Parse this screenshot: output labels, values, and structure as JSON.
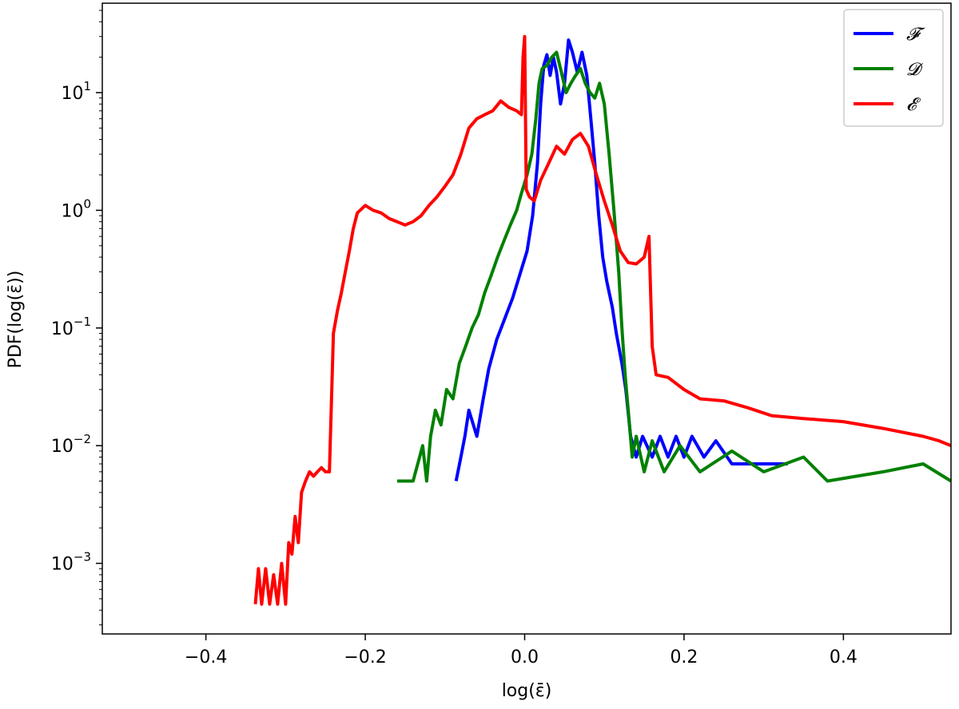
{
  "chart_data": {
    "type": "line",
    "title": "",
    "xlabel": "log(ε̄)",
    "ylabel": "PDF(log(ε̄))",
    "xlim": [
      -0.53,
      0.535
    ],
    "yscale": "log",
    "ylim_log10": [
      -3.6,
      1.76
    ],
    "x_ticks": [
      -0.4,
      -0.2,
      0.0,
      0.2,
      0.4
    ],
    "x_tick_labels": [
      "−0.4",
      "−0.2",
      "0.0",
      "0.2",
      "0.4"
    ],
    "y_ticks_log10": [
      1,
      0,
      -1,
      -2,
      -3
    ],
    "y_tick_labels": [
      {
        "base": "10",
        "exp": "1"
      },
      {
        "base": "10",
        "exp": "0"
      },
      {
        "base": "10",
        "exp": "−1"
      },
      {
        "base": "10",
        "exp": "−2"
      },
      {
        "base": "10",
        "exp": "−3"
      }
    ],
    "grid": false,
    "legend_position": "top-right",
    "series": [
      {
        "name": "𝓕",
        "color": "#0000ff",
        "points": [
          [
            -0.086,
            0.005
          ],
          [
            -0.08,
            0.008
          ],
          [
            -0.075,
            0.012
          ],
          [
            -0.07,
            0.02
          ],
          [
            -0.06,
            0.012
          ],
          [
            -0.052,
            0.025
          ],
          [
            -0.045,
            0.045
          ],
          [
            -0.035,
            0.08
          ],
          [
            -0.025,
            0.12
          ],
          [
            -0.015,
            0.18
          ],
          [
            -0.005,
            0.3
          ],
          [
            0.003,
            0.45
          ],
          [
            0.01,
            0.9
          ],
          [
            0.016,
            2.5
          ],
          [
            0.02,
            8.0
          ],
          [
            0.024,
            17.0
          ],
          [
            0.028,
            21.0
          ],
          [
            0.032,
            14.0
          ],
          [
            0.036,
            20.0
          ],
          [
            0.04,
            15.0
          ],
          [
            0.045,
            8.0
          ],
          [
            0.05,
            12.0
          ],
          [
            0.055,
            28.0
          ],
          [
            0.06,
            22.0
          ],
          [
            0.066,
            15.0
          ],
          [
            0.072,
            22.0
          ],
          [
            0.078,
            14.0
          ],
          [
            0.083,
            6.0
          ],
          [
            0.088,
            2.5
          ],
          [
            0.093,
            0.9
          ],
          [
            0.098,
            0.4
          ],
          [
            0.103,
            0.25
          ],
          [
            0.11,
            0.15
          ],
          [
            0.115,
            0.09
          ],
          [
            0.122,
            0.05
          ],
          [
            0.127,
            0.03
          ],
          [
            0.133,
            0.012
          ],
          [
            0.14,
            0.008
          ],
          [
            0.148,
            0.012
          ],
          [
            0.16,
            0.008
          ],
          [
            0.17,
            0.012
          ],
          [
            0.18,
            0.008
          ],
          [
            0.19,
            0.012
          ],
          [
            0.2,
            0.008
          ],
          [
            0.21,
            0.012
          ],
          [
            0.225,
            0.008
          ],
          [
            0.24,
            0.011
          ],
          [
            0.26,
            0.007
          ],
          [
            0.29,
            0.007
          ],
          [
            0.33,
            0.007
          ]
        ]
      },
      {
        "name": "𝓓",
        "color": "#008000",
        "points": [
          [
            -0.16,
            0.005
          ],
          [
            -0.14,
            0.005
          ],
          [
            -0.128,
            0.01
          ],
          [
            -0.123,
            0.005
          ],
          [
            -0.118,
            0.012
          ],
          [
            -0.112,
            0.02
          ],
          [
            -0.105,
            0.015
          ],
          [
            -0.098,
            0.03
          ],
          [
            -0.09,
            0.025
          ],
          [
            -0.082,
            0.05
          ],
          [
            -0.074,
            0.07
          ],
          [
            -0.066,
            0.1
          ],
          [
            -0.058,
            0.13
          ],
          [
            -0.05,
            0.2
          ],
          [
            -0.042,
            0.28
          ],
          [
            -0.034,
            0.4
          ],
          [
            -0.026,
            0.55
          ],
          [
            -0.018,
            0.75
          ],
          [
            -0.01,
            1.0
          ],
          [
            -0.004,
            1.4
          ],
          [
            0.003,
            2.0
          ],
          [
            0.009,
            3.0
          ],
          [
            0.014,
            6.0
          ],
          [
            0.018,
            12.0
          ],
          [
            0.022,
            16.0
          ],
          [
            0.028,
            17.0
          ],
          [
            0.034,
            20.0
          ],
          [
            0.04,
            22.0
          ],
          [
            0.046,
            15.0
          ],
          [
            0.052,
            10.0
          ],
          [
            0.058,
            12.0
          ],
          [
            0.064,
            14.0
          ],
          [
            0.07,
            16.0
          ],
          [
            0.076,
            12.0
          ],
          [
            0.082,
            10.0
          ],
          [
            0.088,
            9.0
          ],
          [
            0.094,
            12.0
          ],
          [
            0.1,
            8.0
          ],
          [
            0.106,
            3.0
          ],
          [
            0.112,
            1.0
          ],
          [
            0.118,
            0.3
          ],
          [
            0.122,
            0.1
          ],
          [
            0.126,
            0.04
          ],
          [
            0.13,
            0.02
          ],
          [
            0.135,
            0.008
          ],
          [
            0.14,
            0.012
          ],
          [
            0.15,
            0.006
          ],
          [
            0.16,
            0.011
          ],
          [
            0.175,
            0.006
          ],
          [
            0.195,
            0.01
          ],
          [
            0.22,
            0.006
          ],
          [
            0.26,
            0.009
          ],
          [
            0.3,
            0.006
          ],
          [
            0.35,
            0.008
          ],
          [
            0.38,
            0.005
          ],
          [
            0.45,
            0.006
          ],
          [
            0.5,
            0.007
          ],
          [
            0.535,
            0.005
          ]
        ]
      },
      {
        "name": "𝓔",
        "color": "#ff0000",
        "points": [
          [
            -0.338,
            0.00045
          ],
          [
            -0.334,
            0.0009
          ],
          [
            -0.33,
            0.00045
          ],
          [
            -0.325,
            0.0009
          ],
          [
            -0.32,
            0.00045
          ],
          [
            -0.315,
            0.0008
          ],
          [
            -0.31,
            0.00045
          ],
          [
            -0.305,
            0.001
          ],
          [
            -0.3,
            0.00045
          ],
          [
            -0.296,
            0.0015
          ],
          [
            -0.292,
            0.0012
          ],
          [
            -0.288,
            0.0025
          ],
          [
            -0.284,
            0.0015
          ],
          [
            -0.28,
            0.004
          ],
          [
            -0.275,
            0.005
          ],
          [
            -0.27,
            0.006
          ],
          [
            -0.265,
            0.0055
          ],
          [
            -0.26,
            0.006
          ],
          [
            -0.255,
            0.0065
          ],
          [
            -0.25,
            0.006
          ],
          [
            -0.245,
            0.006
          ],
          [
            -0.24,
            0.09
          ],
          [
            -0.235,
            0.14
          ],
          [
            -0.23,
            0.2
          ],
          [
            -0.225,
            0.3
          ],
          [
            -0.22,
            0.45
          ],
          [
            -0.215,
            0.7
          ],
          [
            -0.21,
            0.95
          ],
          [
            -0.2,
            1.1
          ],
          [
            -0.19,
            1.0
          ],
          [
            -0.18,
            0.95
          ],
          [
            -0.17,
            0.85
          ],
          [
            -0.16,
            0.8
          ],
          [
            -0.15,
            0.75
          ],
          [
            -0.14,
            0.8
          ],
          [
            -0.13,
            0.9
          ],
          [
            -0.12,
            1.1
          ],
          [
            -0.11,
            1.3
          ],
          [
            -0.1,
            1.6
          ],
          [
            -0.09,
            2.0
          ],
          [
            -0.08,
            3.0
          ],
          [
            -0.07,
            5.0
          ],
          [
            -0.06,
            6.0
          ],
          [
            -0.05,
            6.5
          ],
          [
            -0.04,
            7.0
          ],
          [
            -0.03,
            8.5
          ],
          [
            -0.02,
            7.5
          ],
          [
            -0.01,
            7.0
          ],
          [
            -0.004,
            6.5
          ],
          [
            -0.002,
            20.0
          ],
          [
            0.0,
            30.0
          ],
          [
            0.002,
            1.5
          ],
          [
            0.006,
            1.3
          ],
          [
            0.012,
            1.2
          ],
          [
            0.02,
            1.8
          ],
          [
            0.03,
            2.5
          ],
          [
            0.04,
            3.5
          ],
          [
            0.05,
            3.0
          ],
          [
            0.06,
            4.0
          ],
          [
            0.07,
            4.5
          ],
          [
            0.08,
            3.5
          ],
          [
            0.09,
            2.0
          ],
          [
            0.1,
            1.2
          ],
          [
            0.11,
            0.75
          ],
          [
            0.12,
            0.45
          ],
          [
            0.13,
            0.36
          ],
          [
            0.14,
            0.35
          ],
          [
            0.15,
            0.4
          ],
          [
            0.156,
            0.6
          ],
          [
            0.16,
            0.07
          ],
          [
            0.165,
            0.04
          ],
          [
            0.18,
            0.038
          ],
          [
            0.2,
            0.03
          ],
          [
            0.22,
            0.025
          ],
          [
            0.25,
            0.024
          ],
          [
            0.28,
            0.021
          ],
          [
            0.31,
            0.018
          ],
          [
            0.35,
            0.017
          ],
          [
            0.4,
            0.016
          ],
          [
            0.45,
            0.014
          ],
          [
            0.5,
            0.012
          ],
          [
            0.52,
            0.011
          ],
          [
            0.535,
            0.01
          ]
        ]
      }
    ]
  }
}
